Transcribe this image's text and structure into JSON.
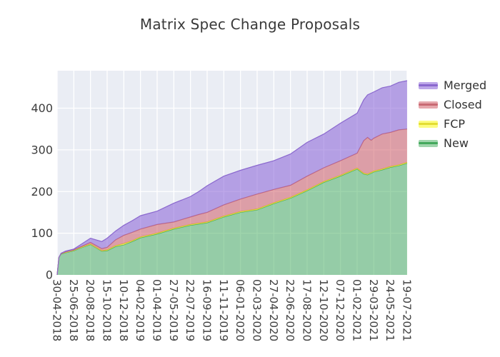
{
  "chart_data": {
    "type": "area",
    "stacked": true,
    "title": "Matrix Spec Change Proposals",
    "xlabel": "",
    "ylabel": "",
    "x_unit": "days since first tick (30-04-2018), weekly cumulative proposal counts",
    "x_max_days": 1176,
    "x": [
      0,
      6,
      13,
      28,
      56,
      84,
      112,
      150,
      168,
      196,
      224,
      252,
      280,
      336,
      392,
      448,
      476,
      504,
      560,
      616,
      672,
      728,
      784,
      840,
      896,
      952,
      1008,
      1030,
      1043,
      1055,
      1064,
      1092,
      1120,
      1148,
      1176
    ],
    "series": [
      {
        "name": "New",
        "line": "#44a85c",
        "fill": "rgba(70,175,95,0.52)",
        "values": [
          0,
          42,
          50,
          53,
          58,
          66,
          73,
          57,
          58,
          68,
          72,
          80,
          89,
          98,
          110,
          119,
          122,
          125,
          139,
          150,
          156,
          171,
          184,
          202,
          222,
          237,
          254,
          242,
          240,
          244,
          247,
          252,
          258,
          262,
          268
        ]
      },
      {
        "name": "FCP",
        "line": "#e3dd33",
        "fill": "rgba(250,250,60,0.65)",
        "values": [
          0,
          0,
          1,
          1,
          1,
          1,
          1,
          1,
          2,
          2,
          3,
          2,
          2,
          2,
          2,
          2,
          2,
          2,
          2,
          2,
          2,
          2,
          2,
          2,
          2,
          2,
          2,
          2,
          2,
          2,
          2,
          2,
          2,
          2,
          2
        ]
      },
      {
        "name": "Closed",
        "line": "#c96a73",
        "fill": "rgba(205,80,90,0.5)",
        "values": [
          0,
          0,
          0,
          1,
          1,
          2,
          4,
          5,
          6,
          14,
          20,
          20,
          19,
          21,
          15,
          18,
          21,
          23,
          27,
          30,
          36,
          32,
          29,
          33,
          33,
          35,
          36,
          78,
          88,
          77,
          79,
          84,
          82,
          84,
          80
        ]
      },
      {
        "name": "Merged",
        "line": "#8a68ce",
        "fill": "rgba(135,95,215,0.55)",
        "values": [
          0,
          0,
          1,
          2,
          2,
          6,
          10,
          17,
          22,
          21,
          24,
          28,
          32,
          32,
          45,
          49,
          55,
          64,
          69,
          69,
          69,
          69,
          75,
          81,
          81,
          90,
          96,
          98,
          102,
          113,
          111,
          111,
          111,
          114,
          116
        ]
      }
    ],
    "legend_order": [
      "Merged",
      "Closed",
      "FCP",
      "New"
    ],
    "legend_position": "outside-upper-right",
    "x_tick_days": [
      0,
      56,
      112,
      168,
      224,
      280,
      336,
      392,
      448,
      504,
      560,
      616,
      672,
      728,
      784,
      840,
      896,
      952,
      1008,
      1064,
      1120,
      1176
    ],
    "x_tick_labels": [
      "30-04-2018",
      "25-06-2018",
      "20-08-2018",
      "15-10-2018",
      "10-12-2018",
      "04-02-2019",
      "01-04-2019",
      "27-05-2019",
      "22-07-2019",
      "16-09-2019",
      "11-11-2019",
      "06-01-2020",
      "02-03-2020",
      "27-04-2020",
      "22-06-2020",
      "17-08-2020",
      "12-10-2020",
      "07-12-2020",
      "01-02-2021",
      "29-03-2021",
      "24-05-2021",
      "19-07-2021"
    ],
    "y_ticks": [
      0,
      100,
      200,
      300,
      400
    ],
    "ylim": [
      0,
      490
    ],
    "grid": true,
    "colors": {
      "plot_bg": "#eaedf4",
      "grid": "#ffffff",
      "tick_text": "#3d3d3d",
      "title_text": "#3a3a3a"
    }
  }
}
